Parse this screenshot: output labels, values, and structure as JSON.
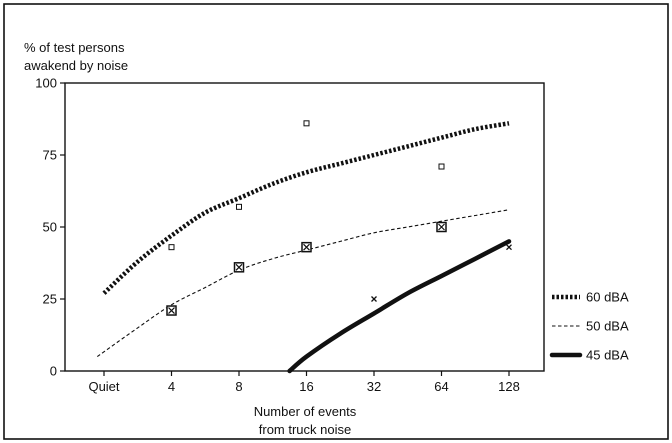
{
  "chart_data": {
    "type": "scatter",
    "ylabel_lines": [
      "% of test persons",
      "awakend by noise"
    ],
    "xlabel_lines": [
      "Number of events",
      "from truck noise"
    ],
    "categories": [
      "Quiet",
      "4",
      "8",
      "16",
      "32",
      "64",
      "128"
    ],
    "yticks": [
      0,
      25,
      50,
      75,
      100
    ],
    "ylim": [
      0,
      100
    ],
    "grid": false,
    "legend_position": "right",
    "series": [
      {
        "name": "60 dBA",
        "line_style": "heavy-dotted",
        "curve": [
          [
            0,
            27
          ],
          [
            0.5,
            38
          ],
          [
            1,
            47
          ],
          [
            1.5,
            55
          ],
          [
            2,
            60
          ],
          [
            2.5,
            65
          ],
          [
            3,
            69
          ],
          [
            3.5,
            72
          ],
          [
            4,
            75
          ],
          [
            4.5,
            78
          ],
          [
            5,
            81
          ],
          [
            5.5,
            84
          ],
          [
            6,
            86
          ]
        ],
        "points": [
          [
            1,
            43
          ],
          [
            2,
            57
          ],
          [
            3,
            86
          ],
          [
            5,
            71
          ]
        ],
        "marker": "square-open"
      },
      {
        "name": "50 dBA",
        "line_style": "thin-dashed",
        "curve": [
          [
            -0.1,
            5
          ],
          [
            0.5,
            15
          ],
          [
            1,
            23
          ],
          [
            1.5,
            29
          ],
          [
            2,
            35
          ],
          [
            2.5,
            39
          ],
          [
            3,
            42
          ],
          [
            3.5,
            45
          ],
          [
            4,
            48
          ],
          [
            4.5,
            50
          ],
          [
            5,
            52
          ],
          [
            5.5,
            54
          ],
          [
            6,
            56
          ]
        ],
        "points": [
          [
            1,
            21
          ],
          [
            2,
            36
          ],
          [
            3,
            43
          ],
          [
            5,
            50
          ]
        ],
        "marker": "square-crossed"
      },
      {
        "name": "45 dBA",
        "line_style": "solid-heavy",
        "curve": [
          [
            2.75,
            0
          ],
          [
            3,
            5
          ],
          [
            3.5,
            13
          ],
          [
            4,
            20
          ],
          [
            4.5,
            27
          ],
          [
            5,
            33
          ],
          [
            5.5,
            39
          ],
          [
            6,
            45
          ]
        ],
        "points": [
          [
            4,
            25
          ],
          [
            6,
            43
          ]
        ],
        "marker": "x"
      }
    ]
  }
}
